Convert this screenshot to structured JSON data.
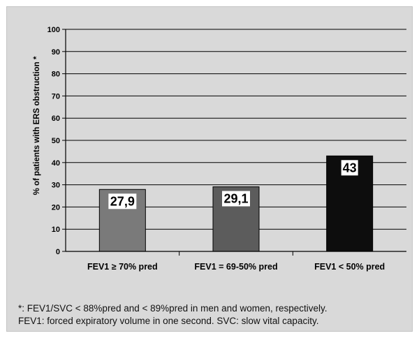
{
  "chart_data": {
    "type": "bar",
    "ylabel": "% of patients with ERS obstruction *",
    "ylim": [
      0,
      100
    ],
    "yticks": [
      "0",
      "10",
      "20",
      "30",
      "40",
      "50",
      "60",
      "70",
      "80",
      "90",
      "100"
    ],
    "grid": true,
    "categories": [
      "FEV1 ≥ 70% pred",
      "FEV1 = 69-50% pred",
      "FEV1 < 50% pred"
    ],
    "values": [
      27.9,
      29.1,
      43
    ],
    "data_labels": [
      "27,9",
      "29,1",
      "43"
    ],
    "colors": [
      "#7a7a7a",
      "#5c5c5c",
      "#0d0d0d"
    ]
  },
  "footnote": {
    "line1": "*: FEV1/SVC < 88%pred and < 89%pred in men and women, respectively.",
    "line2": "FEV1: forced expiratory volume in one second. SVC: slow vital capacity."
  }
}
